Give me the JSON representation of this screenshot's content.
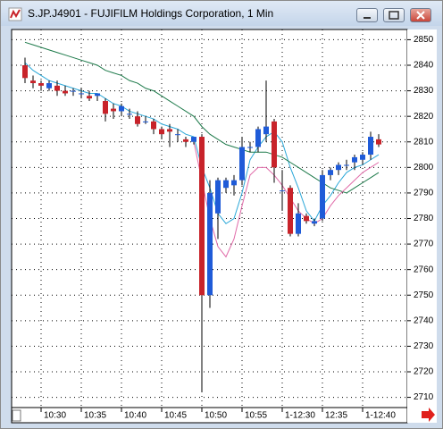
{
  "chart_data": {
    "type": "candlestick",
    "title": "S.JP.J4901 - FUJIFILM Holdings Corporation, 1 Min",
    "categories": [
      null,
      null,
      "10:30",
      null,
      null,
      null,
      null,
      "10:35",
      null,
      null,
      null,
      null,
      "10:40",
      null,
      null,
      null,
      null,
      "10:45",
      null,
      null,
      null,
      null,
      "10:50",
      null,
      null,
      null,
      null,
      "10:55",
      null,
      null,
      null,
      null,
      "1-12:30",
      null,
      null,
      null,
      null,
      "12:35",
      null,
      null,
      null,
      null,
      "1-12:40",
      null,
      null
    ],
    "open": [
      2840,
      2834,
      2833,
      2831,
      2832,
      2830,
      2830,
      2829,
      2828,
      2828,
      2826,
      2823,
      2822,
      2821,
      2820,
      2818,
      2818,
      2815,
      2815,
      2813,
      2811,
      2810,
      2812,
      2750,
      2782,
      2792,
      2793,
      2795,
      2808,
      2808,
      2813,
      2818,
      2791,
      2792,
      2774,
      2781,
      2778,
      2780,
      2797,
      2799,
      2801,
      2802,
      2803,
      2805,
      2811
    ],
    "high": [
      2843,
      2836,
      2834,
      2834,
      2834,
      2832,
      2831,
      2831,
      2830,
      2829,
      2827,
      2825,
      2825,
      2823,
      2822,
      2820,
      2819,
      2816,
      2817,
      2815,
      2812,
      2812,
      2813,
      2795,
      2796,
      2796,
      2797,
      2812,
      2810,
      2816,
      2834,
      2819,
      2799,
      2793,
      2786,
      2782,
      2780,
      2799,
      2800,
      2802,
      2803,
      2805,
      2806,
      2814,
      2813
    ],
    "low": [
      2833,
      2831,
      2830,
      2830,
      2828,
      2828,
      2828,
      2827,
      2826,
      2826,
      2818,
      2819,
      2820,
      2819,
      2816,
      2817,
      2813,
      2811,
      2808,
      2810,
      2808,
      2809,
      2712,
      2745,
      2772,
      2790,
      2789,
      2793,
      2806,
      2806,
      2810,
      2794,
      2783,
      2773,
      2773,
      2778,
      2777,
      2779,
      2795,
      2797,
      2799,
      2799,
      2801,
      2803,
      2808
    ],
    "close": [
      2835,
      2833,
      2832,
      2833,
      2830,
      2829,
      2830,
      2829,
      2827,
      2829,
      2821,
      2822,
      2824,
      2821,
      2817,
      2818,
      2815,
      2813,
      2814,
      2813,
      2810,
      2812,
      2750,
      2790,
      2795,
      2795,
      2795,
      2808,
      2808,
      2815,
      2816,
      2800,
      2791,
      2774,
      2782,
      2779,
      2779,
      2797,
      2799,
      2801,
      2801,
      2804,
      2805,
      2812,
      2809
    ],
    "up_color": "#1f5bd8",
    "down_color": "#c8232a",
    "series": [
      {
        "color": "#2aa7d8",
        "values": [
          2841,
          2838,
          2836,
          2834,
          2833,
          2832,
          2831,
          2830,
          2829,
          2829,
          2827,
          2825,
          2824,
          2822,
          2821,
          2820,
          2819,
          2817,
          2816,
          2815,
          2813,
          2812,
          2800,
          2792,
          2782,
          2778,
          2780,
          2790,
          2803,
          2808,
          2812,
          2814,
          2810,
          2800,
          2792,
          2783,
          2779,
          2785,
          2789,
          2794,
          2798,
          2800,
          2801,
          2803,
          2805
        ]
      },
      {
        "color": "#1d7a4a",
        "values": [
          2849,
          2848,
          2847,
          2846,
          2845,
          2844,
          2843,
          2842,
          2841,
          2840,
          2838,
          2837,
          2836,
          2834,
          2833,
          2831,
          2830,
          2828,
          2826,
          2824,
          2822,
          2820,
          2816,
          2813,
          2811,
          2809,
          2808,
          2807,
          2806,
          2806,
          2806,
          2805,
          2804,
          2802,
          2800,
          2798,
          2796,
          2794,
          2792,
          2791,
          2790,
          2792,
          2794,
          2796,
          2798
        ]
      },
      {
        "color": "#e06aa8",
        "values": [
          null,
          null,
          null,
          null,
          null,
          null,
          null,
          null,
          null,
          null,
          null,
          null,
          null,
          null,
          null,
          null,
          null,
          null,
          null,
          null,
          null,
          2810,
          2795,
          2780,
          2769,
          2765,
          2772,
          2785,
          2797,
          2800,
          2800,
          2797,
          2793,
          2788,
          2783,
          2780,
          2778,
          2780,
          2785,
          2789,
          2792,
          2795,
          2798,
          2800,
          2802
        ]
      }
    ],
    "ylim": [
      2706,
      2854
    ],
    "yticks": [
      2710,
      2720,
      2730,
      2740,
      2750,
      2760,
      2770,
      2780,
      2790,
      2800,
      2810,
      2820,
      2830,
      2840,
      2850
    ],
    "grid": true
  }
}
